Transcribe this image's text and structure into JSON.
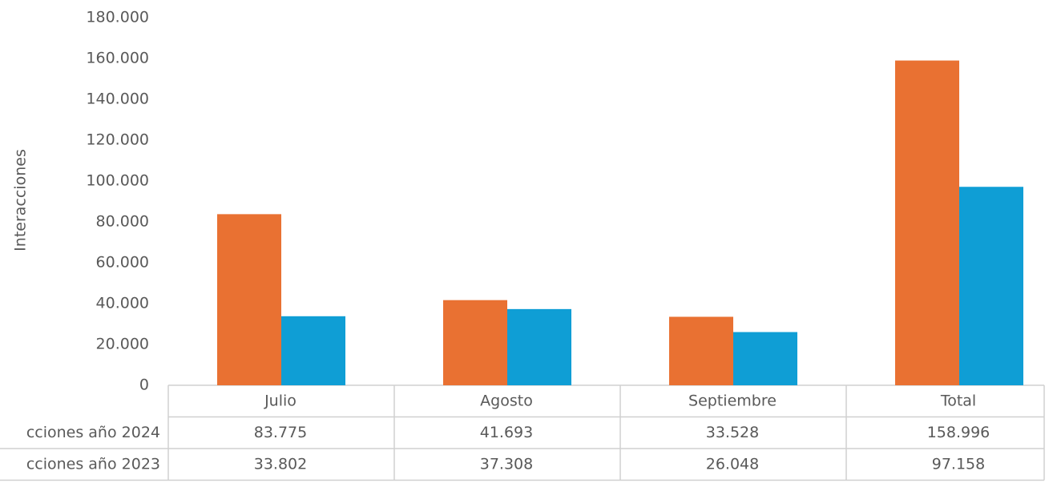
{
  "chart_data": {
    "type": "bar",
    "ylabel": "Interacciones",
    "categories": [
      "Julio",
      "Agosto",
      "Septiembre",
      "Total"
    ],
    "series": [
      {
        "name": "cciones año 2024",
        "color": "#e97132",
        "values": [
          83775,
          41693,
          33528,
          158996
        ],
        "value_labels": [
          "83.775",
          "41.693",
          "33.528",
          "158.996"
        ]
      },
      {
        "name": "cciones año 2023",
        "color": "#0f9ed5",
        "values": [
          33802,
          37308,
          26048,
          97158
        ],
        "value_labels": [
          "33.802",
          "37.308",
          "26.048",
          "97.158"
        ]
      }
    ],
    "ylim": [
      0,
      180000
    ],
    "yticks": [
      0,
      {
        "value": 20000,
        "label": "20.000"
      },
      {
        "value": 40000,
        "label": "40.000"
      },
      {
        "value": 60000,
        "label": "60.000"
      },
      {
        "value": 80000,
        "label": "80.000"
      },
      {
        "value": 100000,
        "label": "100.000"
      },
      {
        "value": 120000,
        "label": "120.000"
      },
      {
        "value": 140000,
        "label": "140.000"
      },
      {
        "value": 160000,
        "label": "160.000"
      },
      {
        "value": 180000,
        "label": "180.000"
      }
    ],
    "grid": false
  }
}
